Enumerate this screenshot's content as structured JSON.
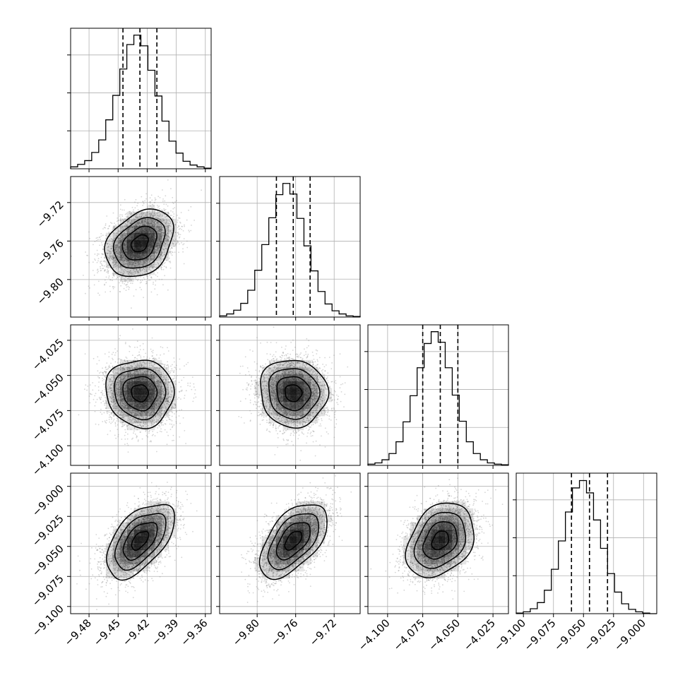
{
  "chart_data": {
    "type": "corner",
    "params": [
      {
        "ticks": [
          -9.48,
          -9.45,
          -9.42,
          -9.39,
          -9.36
        ],
        "tick_labels": [
          "−9.48",
          "−9.45",
          "−9.42",
          "−9.39",
          "−9.36"
        ],
        "range": [
          -9.499,
          -9.354
        ],
        "mean": -9.4275,
        "sd": 0.0175,
        "quantiles": [
          -9.445,
          -9.4275,
          -9.41
        ]
      },
      {
        "ticks": [
          -9.8,
          -9.76,
          -9.72
        ],
        "tick_labels": [
          "−9.80",
          "−9.76",
          "−9.72"
        ],
        "range": [
          -9.839,
          -9.693
        ],
        "mean": -9.7625,
        "sd": 0.0175,
        "quantiles": [
          -9.78,
          -9.7625,
          -9.745
        ]
      },
      {
        "ticks": [
          -4.1,
          -4.075,
          -4.05,
          -4.025
        ],
        "tick_labels": [
          "−4.100",
          "−4.075",
          "−4.050",
          "−4.025"
        ],
        "range": [
          -4.114,
          -4.014
        ],
        "mean": -4.0625,
        "sd": 0.012,
        "quantiles": [
          -4.075,
          -4.0625,
          -4.05
        ]
      },
      {
        "ticks": [
          -9.1,
          -9.075,
          -9.05,
          -9.025,
          -9.0
        ],
        "tick_labels": [
          "−9.100",
          "−9.075",
          "−9.050",
          "−9.025",
          "−9.000"
        ],
        "range": [
          -9.106,
          -8.989
        ],
        "mean": -9.045,
        "sd": 0.0155,
        "quantiles": [
          -9.06,
          -9.045,
          -9.03
        ]
      }
    ],
    "histograms": [
      {
        "param": 0,
        "bins": 20,
        "counts": [
          3,
          7,
          13,
          26,
          46,
          78,
          117,
          159,
          198,
          213,
          196,
          157,
          116,
          76,
          44,
          25,
          12,
          6,
          3,
          1
        ],
        "ylim": [
          0,
          224
        ]
      },
      {
        "param": 1,
        "bins": 20,
        "counts": [
          2,
          5,
          11,
          22,
          43,
          75,
          116,
          159,
          196,
          214,
          197,
          158,
          114,
          74,
          41,
          21,
          10,
          5,
          2,
          1
        ],
        "ylim": [
          0,
          225
        ]
      },
      {
        "param": 2,
        "bins": 20,
        "counts": [
          2,
          4,
          9,
          19,
          38,
          70,
          112,
          157,
          196,
          215,
          198,
          157,
          113,
          71,
          38,
          19,
          9,
          4,
          2,
          1
        ],
        "ylim": [
          0,
          226
        ]
      },
      {
        "param": 3,
        "bins": 20,
        "counts": [
          1,
          3,
          8,
          18,
          38,
          72,
          118,
          165,
          204,
          216,
          196,
          152,
          106,
          65,
          35,
          16,
          7,
          3,
          1,
          0
        ],
        "ylim": [
          0,
          228
        ]
      }
    ],
    "correlations": [
      {
        "row": 1,
        "col": 0,
        "rho": 0.3
      },
      {
        "row": 2,
        "col": 0,
        "rho": -0.05
      },
      {
        "row": 2,
        "col": 1,
        "rho": -0.05
      },
      {
        "row": 3,
        "col": 0,
        "rho": 0.55
      },
      {
        "row": 3,
        "col": 1,
        "rho": 0.55
      },
      {
        "row": 3,
        "col": 2,
        "rho": 0.3
      }
    ],
    "contour_levels_sigma": [
      0.5,
      1.0,
      1.5,
      2.0
    ],
    "samples_per_panel": 3500,
    "grid": true,
    "colors": {
      "line": "#000000",
      "points": "#888888",
      "grid": "#b0b0b0",
      "density": "#000000"
    }
  }
}
